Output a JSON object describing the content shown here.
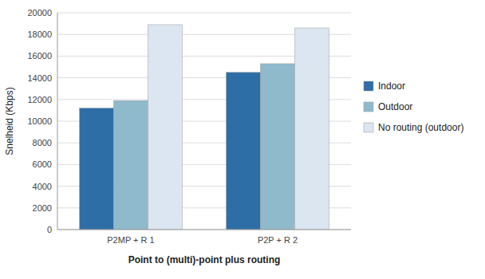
{
  "chart_data": {
    "type": "bar",
    "categories": [
      "P2MP + R 1",
      "P2P + R 2"
    ],
    "series": [
      {
        "name": "Indoor",
        "color": "#2E6EA6",
        "values": [
          11200,
          14500
        ]
      },
      {
        "name": "Outdoor",
        "color": "#8FBACC",
        "values": [
          11900,
          15300
        ]
      },
      {
        "name": "No routing (outdoor)",
        "color": "#DCE6F1",
        "values": [
          18900,
          18600
        ]
      }
    ],
    "ylabel": "Snelheid (Kbps)",
    "xlabel": "Point to (multi)-point plus routing",
    "ylim": [
      0,
      20000
    ],
    "yticks": [
      0,
      2000,
      4000,
      6000,
      8000,
      10000,
      12000,
      14000,
      16000,
      18000,
      20000
    ],
    "grid": true,
    "legend": "right"
  }
}
